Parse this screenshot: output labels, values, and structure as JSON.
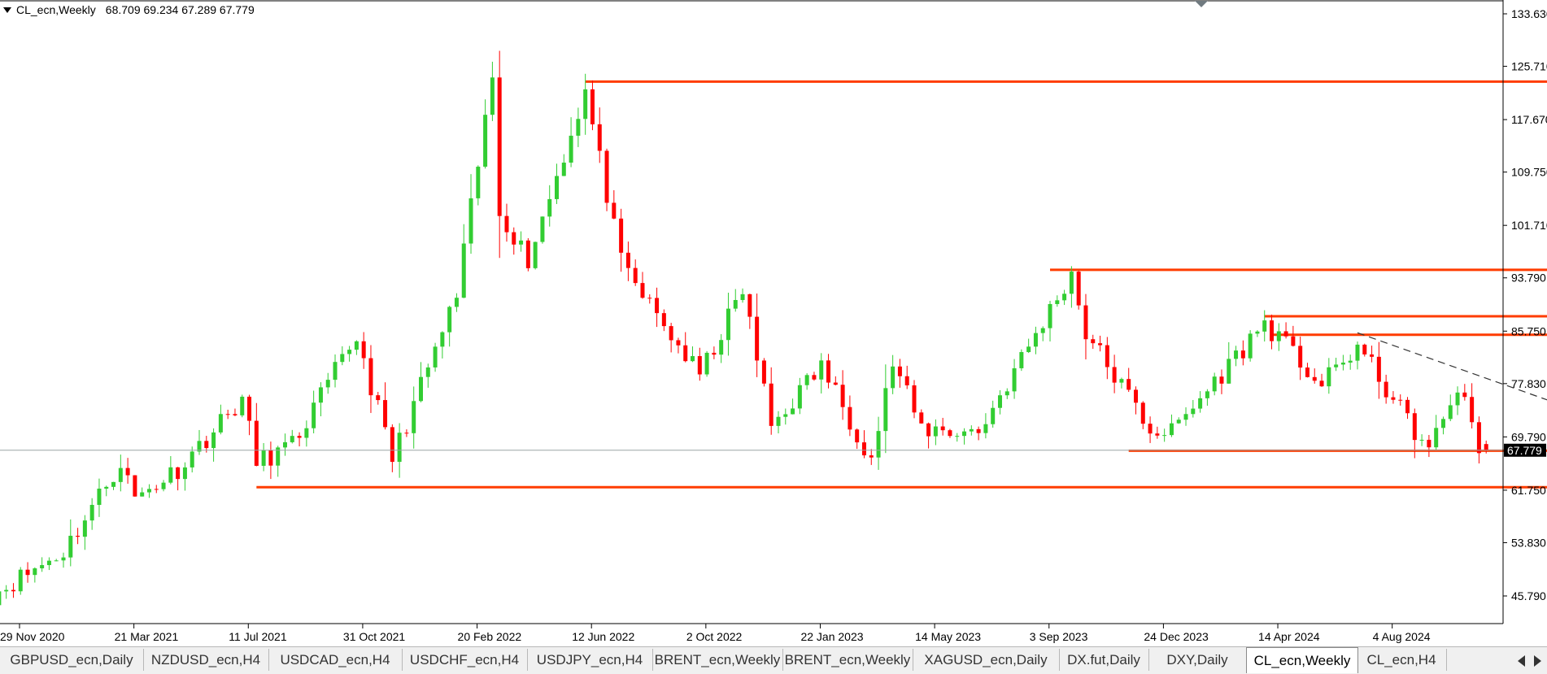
{
  "symbol": {
    "name": "CL_ecn,Weekly",
    "ohlc": "68.709 69.234 67.289 67.779"
  },
  "current_price": "67.779",
  "tabs": [
    "GBPUSD_ecn,Daily",
    "NZDUSD_ecn,H4",
    "USDCAD_ecn,H4",
    "USDCHF_ecn,H4",
    "USDJPY_ecn,H4",
    "BRENT_ecn,Weekly",
    "BRENT_ecn,Weekly",
    "XAGUSD_ecn,Daily",
    "DX.fut,Daily",
    "DXY,Daily",
    "CL_ecn,Weekly",
    "CL_ecn,H4"
  ],
  "active_tab": 10,
  "colors": {
    "bull": "#32cd32",
    "bear": "#ff0000",
    "level": "#ff3c00",
    "trend": "#333333",
    "price_line": "#9aa5a5"
  },
  "icons": {
    "tab_prev": "triangle-left-icon",
    "tab_next": "triangle-right-icon",
    "menu": "triangle-down-icon"
  },
  "chart_data": {
    "type": "candlestick",
    "timeframe": "Weekly",
    "ylim": [
      42,
      134.5
    ],
    "y_ticks": [
      "133.630",
      "125.710",
      "117.670",
      "109.750",
      "101.710",
      "93.790",
      "85.750",
      "77.830",
      "69.790",
      "61.750",
      "53.830",
      "45.790"
    ],
    "x_ticks": [
      "29 Nov 2020",
      "21 Mar 2021",
      "11 Jul 2021",
      "31 Oct 2021",
      "20 Feb 2022",
      "12 Jun 2022",
      "2 Oct 2022",
      "22 Jan 2023",
      "14 May 2023",
      "3 Sep 2023",
      "24 Dec 2023",
      "14 Apr 2024",
      "4 Aug 2024"
    ],
    "anchors": [
      [
        "2020-11-02",
        46.0
      ],
      [
        "2021-01-11",
        52.5
      ],
      [
        "2021-03-08",
        66.0
      ],
      [
        "2021-03-22",
        60.5
      ],
      [
        "2021-05-03",
        65.0
      ],
      [
        "2021-07-05",
        75.5
      ],
      [
        "2021-07-19",
        66.0
      ],
      [
        "2021-08-23",
        68.5
      ],
      [
        "2021-10-25",
        85.0
      ],
      [
        "2021-11-29",
        66.5
      ],
      [
        "2022-01-31",
        91.0
      ],
      [
        "2022-03-07",
        124.0
      ],
      [
        "2022-03-14",
        104.0
      ],
      [
        "2022-04-11",
        96.5
      ],
      [
        "2022-06-06",
        122.0
      ],
      [
        "2022-07-11",
        96.0
      ],
      [
        "2022-08-15",
        88.0
      ],
      [
        "2022-09-26",
        79.0
      ],
      [
        "2022-11-07",
        92.0
      ],
      [
        "2022-12-05",
        71.5
      ],
      [
        "2023-01-23",
        80.5
      ],
      [
        "2023-03-13",
        66.5
      ],
      [
        "2023-04-03",
        81.0
      ],
      [
        "2023-05-01",
        71.0
      ],
      [
        "2023-06-26",
        70.5
      ],
      [
        "2023-09-25",
        94.5
      ],
      [
        "2023-10-09",
        85.5
      ],
      [
        "2023-12-11",
        71.0
      ],
      [
        "2024-01-01",
        70.5
      ],
      [
        "2024-04-01",
        87.0
      ],
      [
        "2024-05-27",
        77.5
      ],
      [
        "2024-07-01",
        83.5
      ],
      [
        "2024-09-09",
        67.5
      ],
      [
        "2024-10-07",
        77.5
      ],
      [
        "2024-10-28",
        68.5
      ],
      [
        "2024-11-04",
        67.779
      ]
    ],
    "last_candle": {
      "date": "2024-11-04",
      "open": 68.709,
      "high": 69.234,
      "low": 67.289,
      "close": 67.779
    },
    "horizontal_levels": [
      {
        "price": 123.4,
        "from": "2022-06-06",
        "to": "2025-01-13"
      },
      {
        "price": 95.0,
        "from": "2023-09-04",
        "to": "2025-01-06"
      },
      {
        "price": 88.0,
        "from": "2024-04-01",
        "to": "2025-01-13"
      },
      {
        "price": 85.2,
        "from": "2024-04-08",
        "to": "2025-01-13"
      },
      {
        "price": 67.7,
        "from": "2023-11-20",
        "to": "2025-01-20"
      },
      {
        "price": 62.2,
        "from": "2021-07-19",
        "to": "2025-01-20"
      }
    ],
    "trendline": {
      "from": [
        "2024-07-01",
        85.5
      ],
      "to": [
        "2025-03-24",
        71.0
      ],
      "style": "dashed"
    },
    "price_line": 67.779,
    "grid": false
  }
}
